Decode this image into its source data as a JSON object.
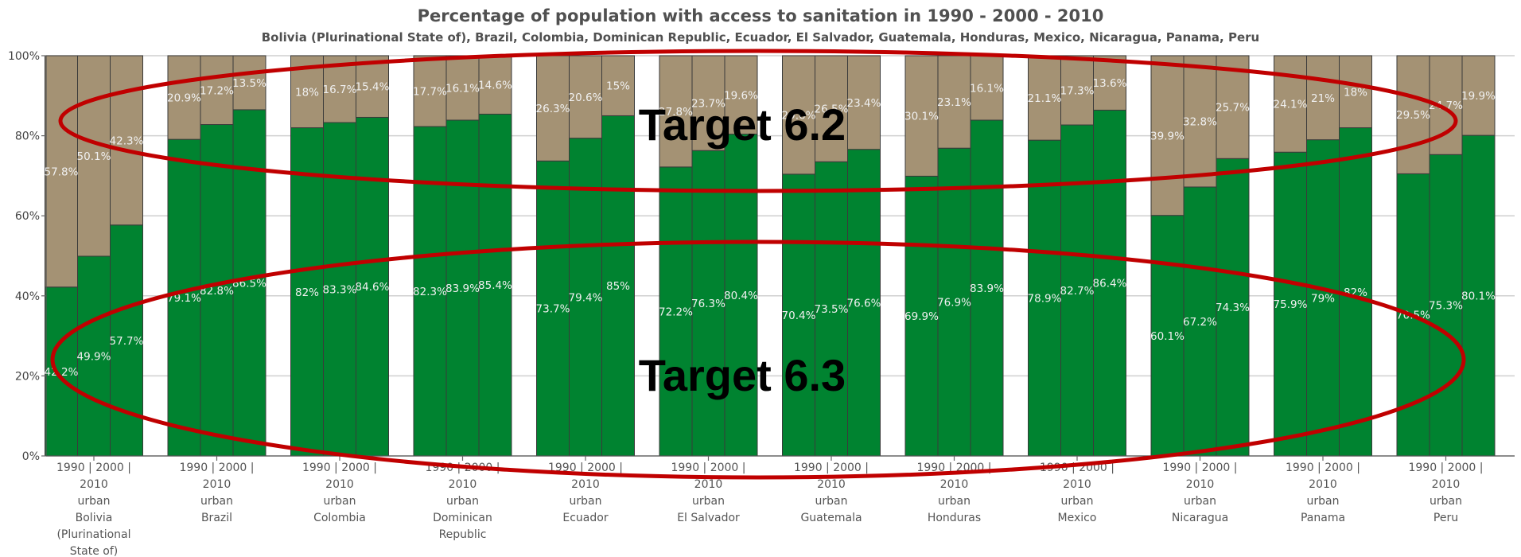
{
  "chart_data": {
    "type": "bar",
    "stacked": true,
    "title": "Percentage of population with access to sanitation in 1990 - 2000 - 2010",
    "subtitle": "Bolivia (Plurinational State of), Brazil, Colombia, Dominican Republic, Ecuador, El Salvador, Guatemala, Honduras, Mexico, Nicaragua, Panama, Peru",
    "ylim": [
      0,
      100
    ],
    "yticks": [
      "0%",
      "20%",
      "40%",
      "60%",
      "80%",
      "100%"
    ],
    "grid": true,
    "years": [
      "1990",
      "2000",
      "2010"
    ],
    "categories": [
      {
        "label_lines": [
          "1990 | 2000 |",
          "2010",
          "urban",
          "Bolivia",
          "(Plurinational",
          "State of)"
        ]
      },
      {
        "label_lines": [
          "1990 | 2000 |",
          "2010",
          "urban",
          "Brazil"
        ]
      },
      {
        "label_lines": [
          "1990 | 2000 |",
          "2010",
          "urban",
          "Colombia"
        ]
      },
      {
        "label_lines": [
          "1990 | 2000 |",
          "2010",
          "urban",
          "Dominican",
          "Republic"
        ]
      },
      {
        "label_lines": [
          "1990 | 2000 |",
          "2010",
          "urban",
          "Ecuador"
        ]
      },
      {
        "label_lines": [
          "1990 | 2000 |",
          "2010",
          "urban",
          "El Salvador"
        ]
      },
      {
        "label_lines": [
          "1990 | 2000 |",
          "2010",
          "urban",
          "Guatemala"
        ]
      },
      {
        "label_lines": [
          "1990 | 2000 |",
          "2010",
          "urban",
          "Honduras"
        ]
      },
      {
        "label_lines": [
          "1990 | 2000 |",
          "2010",
          "urban",
          "Mexico"
        ]
      },
      {
        "label_lines": [
          "1990 | 2000 |",
          "2010",
          "urban",
          "Nicaragua"
        ]
      },
      {
        "label_lines": [
          "1990 | 2000 |",
          "2010",
          "urban",
          "Panama"
        ]
      },
      {
        "label_lines": [
          "1990 | 2000 |",
          "2010",
          "urban",
          "Peru"
        ]
      }
    ],
    "series": [
      {
        "color": "#008330",
        "values": [
          [
            42.2,
            49.9,
            57.7
          ],
          [
            79.1,
            82.8,
            86.5
          ],
          [
            82,
            83.3,
            84.6
          ],
          [
            82.3,
            83.9,
            85.4
          ],
          [
            73.7,
            79.4,
            85
          ],
          [
            72.2,
            76.3,
            80.4
          ],
          [
            70.4,
            73.5,
            76.6
          ],
          [
            69.9,
            76.9,
            83.9
          ],
          [
            78.9,
            82.7,
            86.4
          ],
          [
            60.1,
            67.2,
            74.3
          ],
          [
            75.9,
            79,
            82
          ],
          [
            70.5,
            75.3,
            80.1
          ]
        ],
        "labels": [
          [
            "42.2%",
            "49.9%",
            "57.7%"
          ],
          [
            "79.1%",
            "82.8%",
            "86.5%"
          ],
          [
            "82%",
            "83.3%",
            "84.6%"
          ],
          [
            "82.3%",
            "83.9%",
            "85.4%"
          ],
          [
            "73.7%",
            "79.4%",
            "85%"
          ],
          [
            "72.2%",
            "76.3%",
            "80.4%"
          ],
          [
            "70.4%",
            "73.5%",
            "76.6%"
          ],
          [
            "69.9%",
            "76.9%",
            "83.9%"
          ],
          [
            "78.9%",
            "82.7%",
            "86.4%"
          ],
          [
            "60.1%",
            "67.2%",
            "74.3%"
          ],
          [
            "75.9%",
            "79%",
            "82%"
          ],
          [
            "70.5%",
            "75.3%",
            "80.1%"
          ]
        ]
      },
      {
        "color": "#a49274",
        "values": [
          [
            57.8,
            50.1,
            42.3
          ],
          [
            20.9,
            17.2,
            13.5
          ],
          [
            18,
            16.7,
            15.4
          ],
          [
            17.7,
            16.1,
            14.6
          ],
          [
            26.3,
            20.6,
            15
          ],
          [
            27.8,
            23.7,
            19.6
          ],
          [
            29.6,
            26.5,
            23.4
          ],
          [
            30.1,
            23.1,
            16.1
          ],
          [
            21.1,
            17.3,
            13.6
          ],
          [
            39.9,
            32.8,
            25.7
          ],
          [
            24.1,
            21,
            18
          ],
          [
            29.5,
            24.7,
            19.9
          ]
        ],
        "labels": [
          [
            "57.8%",
            "50.1%",
            "42.3%"
          ],
          [
            "20.9%",
            "17.2%",
            "13.5%"
          ],
          [
            "18%",
            "16.7%",
            "15.4%"
          ],
          [
            "17.7%",
            "16.1%",
            "14.6%"
          ],
          [
            "26.3%",
            "20.6%",
            "15%"
          ],
          [
            "27.8%",
            "23.7%",
            "19.6%"
          ],
          [
            "29.6%",
            "26.5%",
            "23.4%"
          ],
          [
            "30.1%",
            "23.1%",
            "16.1%"
          ],
          [
            "21.1%",
            "17.3%",
            "13.6%"
          ],
          [
            "39.9%",
            "32.8%",
            "25.7%"
          ],
          [
            "24.1%",
            "21%",
            "18%"
          ],
          [
            "29.5%",
            "24.7%",
            "19.9%"
          ]
        ]
      }
    ],
    "annotations": [
      {
        "text": "Target 6.2",
        "shape": "ellipse",
        "color": "#c00000"
      },
      {
        "text": "Target 6.3",
        "shape": "ellipse",
        "color": "#c00000"
      }
    ]
  }
}
